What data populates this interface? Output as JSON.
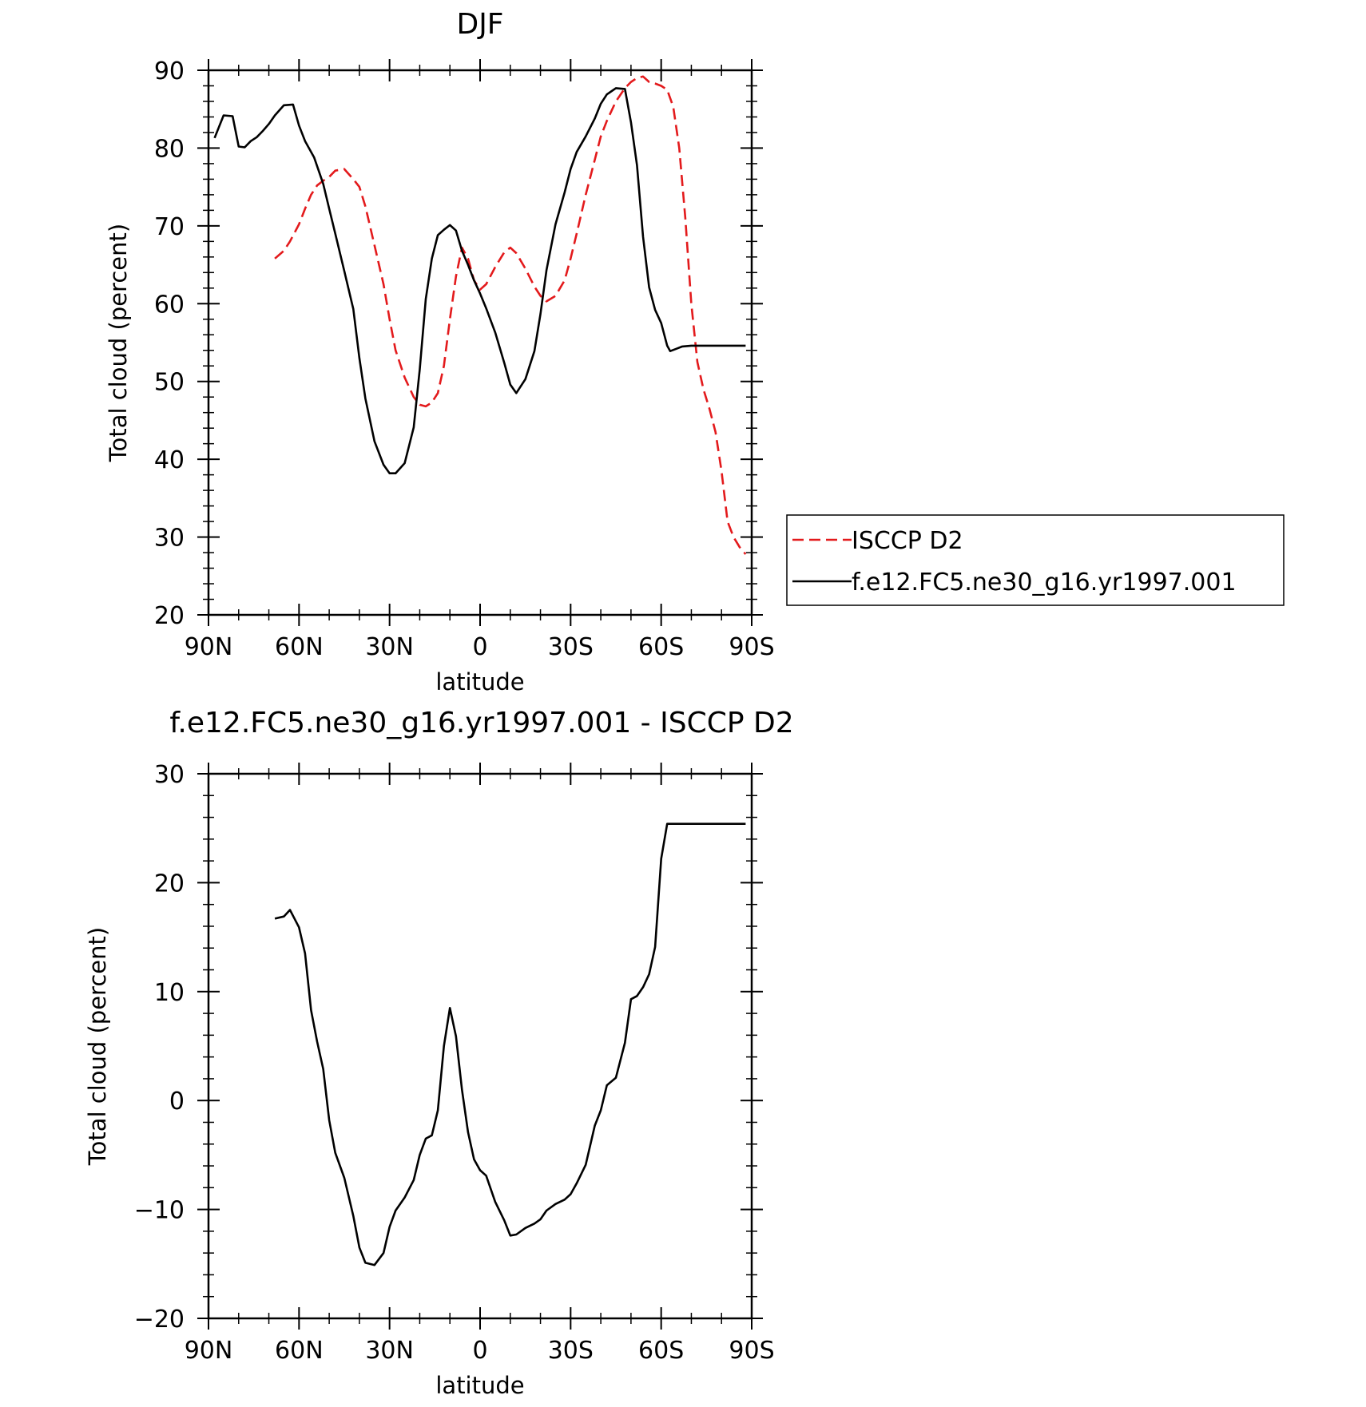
{
  "chart_data": [
    {
      "type": "line",
      "title": "DJF",
      "xlabel": "latitude",
      "ylabel": "Total cloud (percent)",
      "xlim": [
        90,
        -90
      ],
      "ylim": [
        20,
        90
      ],
      "x_ticks": [
        90,
        60,
        30,
        0,
        -30,
        -60,
        -90
      ],
      "x_tick_labels": [
        "90N",
        "60N",
        "30N",
        "0",
        "30S",
        "60S",
        "90S"
      ],
      "y_ticks": [
        20,
        30,
        40,
        50,
        60,
        70,
        80,
        90
      ],
      "y_tick_labels": [
        "20",
        "30",
        "40",
        "50",
        "60",
        "70",
        "80",
        "90"
      ],
      "legend": {
        "placement": "outside-right"
      },
      "series": [
        {
          "name": "ISCCP D2",
          "color": "#e31a1c",
          "dash": "dashed",
          "x": [
            68,
            65,
            63,
            60,
            58,
            56,
            54,
            52,
            50,
            48,
            45,
            42,
            40,
            38,
            35,
            32,
            30,
            28,
            25,
            22,
            20,
            18,
            16,
            14,
            12,
            10,
            8,
            6,
            4,
            2,
            0,
            -2,
            -5,
            -8,
            -10,
            -12,
            -15,
            -18,
            -20,
            -22,
            -25,
            -28,
            -30,
            -32,
            -35,
            -38,
            -40,
            -42,
            -45,
            -48,
            -50,
            -52,
            -54,
            -56,
            -58,
            -60,
            -62,
            -64,
            -66,
            -68,
            -70,
            -72,
            -74,
            -76,
            -78,
            -80,
            -82,
            -84,
            -86,
            -88
          ],
          "y": [
            65.8,
            66.8,
            68,
            70.2,
            72.2,
            74,
            75.2,
            75.8,
            76.3,
            77.1,
            77.3,
            76,
            75,
            72.5,
            67.5,
            62.5,
            58,
            54,
            50.5,
            48,
            47,
            46.8,
            47.3,
            48.5,
            52,
            58,
            63.5,
            67.2,
            65.8,
            63,
            61.8,
            62.5,
            64.7,
            66.6,
            67.2,
            66.5,
            64.5,
            62.2,
            61,
            60.3,
            61,
            63,
            65.8,
            69,
            74,
            78.5,
            81.5,
            83.5,
            86,
            87.7,
            88.5,
            89,
            89.2,
            88.5,
            88.3,
            88,
            87.5,
            85.3,
            80,
            71,
            60,
            52.5,
            49,
            46.5,
            43.5,
            38.5,
            32,
            30,
            28.7,
            27.8
          ]
        },
        {
          "name": "f.e12.FC5.ne30_g16.yr1997.001",
          "color": "#000000",
          "dash": "solid",
          "x": [
            88,
            85,
            82,
            80,
            78,
            76,
            74,
            72,
            70,
            68,
            65,
            62,
            60,
            58,
            55,
            52,
            50,
            48,
            45,
            42,
            40,
            38,
            35,
            32,
            30,
            28,
            25,
            22,
            20,
            18,
            16,
            14,
            12,
            10,
            8,
            6,
            4,
            2,
            0,
            -2,
            -5,
            -8,
            -10,
            -12,
            -15,
            -18,
            -20,
            -22,
            -25,
            -28,
            -30,
            -32,
            -35,
            -38,
            -40,
            -42,
            -45,
            -48,
            -50,
            -52,
            -54,
            -56,
            -58,
            -60,
            -62,
            -63,
            -65,
            -67,
            -70,
            -72,
            -74,
            -76,
            -78,
            -80,
            -82,
            -84,
            -86,
            -88
          ],
          "y": [
            81.3,
            84.2,
            84.1,
            80.2,
            80.1,
            80.9,
            81.4,
            82.2,
            83.1,
            84.2,
            85.5,
            85.6,
            82.9,
            80.9,
            78.8,
            75.4,
            72.2,
            69,
            64.2,
            59.3,
            53,
            47.8,
            42.3,
            39.3,
            38.2,
            38.2,
            39.5,
            44.1,
            51.5,
            60.6,
            65.8,
            68.8,
            69.5,
            70.1,
            69.4,
            66.8,
            65,
            63,
            61.3,
            59.4,
            56.3,
            52.4,
            49.6,
            48.5,
            50.3,
            53.9,
            58.7,
            64.3,
            70.2,
            74.3,
            77.3,
            79.5,
            81.5,
            83.8,
            85.7,
            86.9,
            87.7,
            87.6,
            83.3,
            77.8,
            68.6,
            62.1,
            59.2,
            57.5,
            54.6,
            53.9,
            54.2,
            54.5,
            54.6,
            54.6,
            54.6,
            54.6,
            54.6,
            54.6,
            54.6,
            54.6,
            54.6,
            54.6
          ]
        }
      ]
    },
    {
      "type": "line",
      "title": "f.e12.FC5.ne30_g16.yr1997.001 - ISCCP D2",
      "xlabel": "latitude",
      "ylabel": "Total cloud (percent)",
      "xlim": [
        90,
        -90
      ],
      "ylim": [
        -20,
        30
      ],
      "x_ticks": [
        90,
        60,
        30,
        0,
        -30,
        -60,
        -90
      ],
      "x_tick_labels": [
        "90N",
        "60N",
        "30N",
        "0",
        "30S",
        "60S",
        "90S"
      ],
      "y_ticks": [
        -20,
        -10,
        0,
        10,
        20,
        30
      ],
      "y_tick_labels": [
        "−20",
        "−10",
        "0",
        "10",
        "20",
        "30"
      ],
      "series": [
        {
          "color": "#000000",
          "dash": "solid",
          "x": [
            68,
            65,
            63,
            60,
            58,
            56,
            54,
            52,
            50,
            48,
            45,
            42,
            40,
            38,
            35,
            32,
            30,
            28,
            25,
            22,
            20,
            18,
            16,
            14,
            12,
            10,
            8,
            6,
            4,
            2,
            0,
            -2,
            -5,
            -8,
            -10,
            -12,
            -15,
            -18,
            -20,
            -22,
            -25,
            -28,
            -30,
            -32,
            -35,
            -38,
            -40,
            -42,
            -45,
            -48,
            -50,
            -52,
            -54,
            -56,
            -58,
            -60,
            -62,
            -64,
            -66,
            -68,
            -70,
            -72,
            -74,
            -76,
            -78,
            -80,
            -82,
            -84,
            -86,
            -88
          ],
          "y": [
            16.7,
            16.9,
            17.5,
            15.9,
            13.5,
            8.3,
            5.4,
            2.9,
            -1.8,
            -4.8,
            -7.1,
            -10.6,
            -13.5,
            -14.9,
            -15.1,
            -14.0,
            -11.6,
            -10.1,
            -8.9,
            -7.3,
            -5.0,
            -3.5,
            -3.2,
            -0.9,
            5.0,
            8.5,
            5.9,
            1.0,
            -2.9,
            -5.4,
            -6.4,
            -6.9,
            -9.3,
            -11.0,
            -12.4,
            -12.3,
            -11.7,
            -11.3,
            -10.9,
            -10.1,
            -9.5,
            -9.1,
            -8.6,
            -7.6,
            -5.9,
            -2.3,
            -0.9,
            1.4,
            2.1,
            5.3,
            9.3,
            9.6,
            10.4,
            11.6,
            14.1,
            22.2,
            25.4,
            25.4,
            25.4,
            25.4,
            25.4,
            25.4,
            25.4,
            25.4,
            25.4,
            25.4,
            25.4,
            25.4,
            25.4,
            25.4
          ]
        }
      ]
    }
  ]
}
